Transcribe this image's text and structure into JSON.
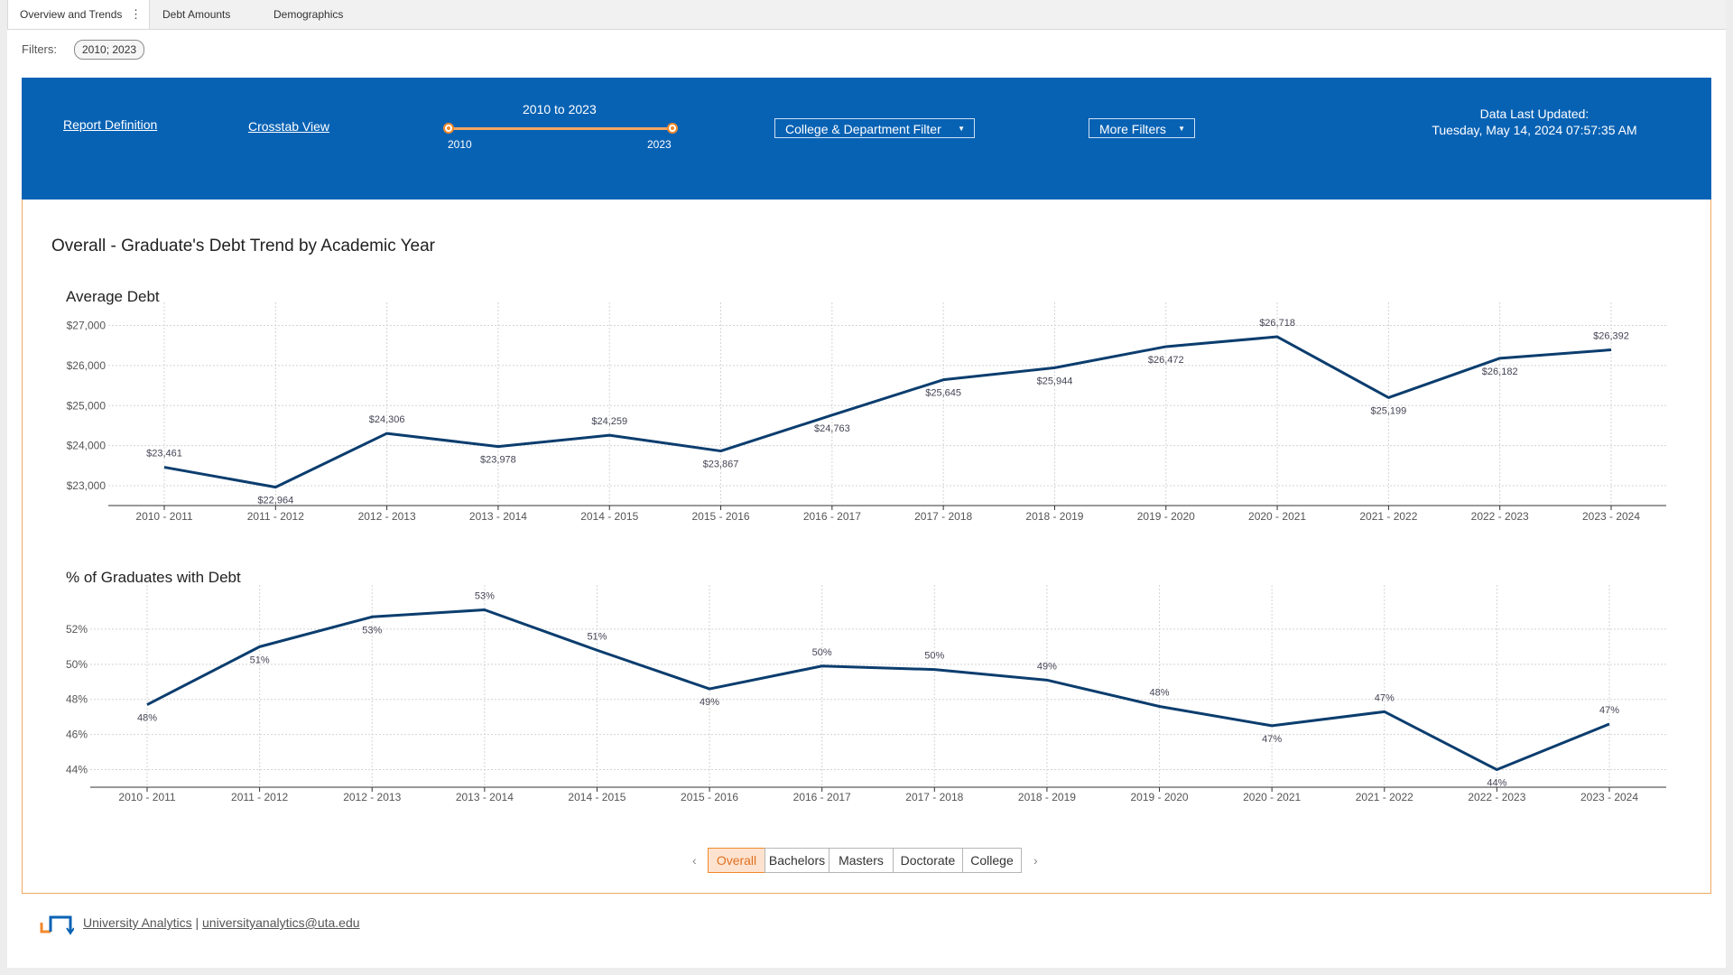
{
  "tabs": [
    {
      "label": "Overview and Trends",
      "active": true
    },
    {
      "label": "Debt Amounts",
      "active": false
    },
    {
      "label": "Demographics",
      "active": false
    }
  ],
  "filters": {
    "label": "Filters:",
    "pill": "2010; 2023"
  },
  "banner": {
    "report_definition": "Report Definition",
    "crosstab_view": "Crosstab View",
    "slider": {
      "title": "2010 to 2023",
      "min_label": "2010",
      "max_label": "2023"
    },
    "college_filter": "College & Department Filter",
    "more_filters": "More Filters",
    "updated_label": "Data Last Updated:",
    "updated_value": "Tuesday, May 14, 2024 07:57:35 AM",
    "bg_color": "#0862b4",
    "accent_color": "#f08a2c"
  },
  "main_title": "Overall - Graduate's Debt Trend by Academic Year",
  "chart_data": [
    {
      "type": "line",
      "title": "Average Debt",
      "categories": [
        "2010 - 2011",
        "2011 - 2012",
        "2012 - 2013",
        "2013 - 2014",
        "2014 - 2015",
        "2015 - 2016",
        "2016 - 2017",
        "2017 - 2018",
        "2018 - 2019",
        "2019 - 2020",
        "2020 - 2021",
        "2021 - 2022",
        "2022 - 2023",
        "2023 - 2024"
      ],
      "values": [
        23461,
        22964,
        24306,
        23978,
        24259,
        23867,
        24763,
        25645,
        25944,
        26472,
        26718,
        25199,
        26182,
        26392
      ],
      "value_labels": [
        "$23,461",
        "$22,964",
        "$24,306",
        "$23,978",
        "$24,259",
        "$23,867",
        "$24,763",
        "$25,645",
        "$25,944",
        "$26,472",
        "$26,718",
        "$25,199",
        "$26,182",
        "$26,392"
      ],
      "yticks": [
        "$27,000",
        "$26,000",
        "$25,000",
        "$24,000",
        "$23,000"
      ],
      "ytick_values": [
        27000,
        26000,
        25000,
        24000,
        23000
      ],
      "ylim": [
        22550,
        27350
      ],
      "grid": true,
      "line_color": "#0b3d6e"
    },
    {
      "type": "line",
      "title": "% of Graduates with Debt",
      "categories": [
        "2010 - 2011",
        "2011 - 2012",
        "2012 - 2013",
        "2013 - 2014",
        "2014 - 2015",
        "2015 - 2016",
        "2016 - 2017",
        "2017 - 2018",
        "2018 - 2019",
        "2019 - 2020",
        "2020 - 2021",
        "2021 - 2022",
        "2022 - 2023",
        "2023 - 2024"
      ],
      "values": [
        47.7,
        51.0,
        52.7,
        53.1,
        50.8,
        48.6,
        49.9,
        49.7,
        49.1,
        47.6,
        46.5,
        47.3,
        44.0,
        46.6
      ],
      "value_labels": [
        "48%",
        "51%",
        "53%",
        "53%",
        "51%",
        "49%",
        "50%",
        "50%",
        "49%",
        "48%",
        "47%",
        "47%",
        "44%",
        "47%"
      ],
      "yticks": [
        "52%",
        "50%",
        "48%",
        "46%",
        "44%"
      ],
      "ytick_values": [
        52,
        50,
        48,
        46,
        44
      ],
      "ylim": [
        43,
        54
      ],
      "grid": true,
      "line_color": "#0b3d6e"
    }
  ],
  "pager": {
    "prev": "‹",
    "next": "›",
    "items": [
      "Overall",
      "Bachelors",
      "Masters",
      "Doctorate",
      "College"
    ],
    "active": "Overall"
  },
  "footer": {
    "org_link": "University Analytics",
    "separator": "|",
    "email_link": "universityanalytics@uta.edu"
  }
}
